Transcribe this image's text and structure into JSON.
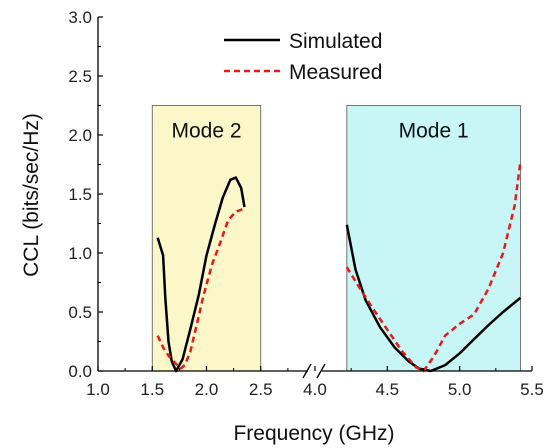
{
  "chart_data": {
    "type": "line",
    "xlabel": "Frequency (GHz)",
    "ylabel": "CCL (bits/sec/Hz)",
    "ylim": [
      0,
      3.0
    ],
    "yticks": [
      "0.0",
      "0.5",
      "1.0",
      "1.5",
      "2.0",
      "2.5",
      "3.0"
    ],
    "x_segments": [
      {
        "range": [
          1.0,
          3.0
        ],
        "ticks": [
          "1.0",
          "1.5",
          "2.0",
          "2.5"
        ]
      },
      {
        "range": [
          4.0,
          5.5
        ],
        "ticks": [
          "4.0",
          "4.5",
          "5.0",
          "5.5"
        ]
      }
    ],
    "axis_break": "between 3.0 and 4.0",
    "legend_position": "top-center",
    "regions": [
      {
        "label": "Mode 2",
        "x": [
          1.5,
          2.5
        ],
        "y": [
          0,
          2.25
        ],
        "color": "#fbf7c9"
      },
      {
        "label": "Mode 1",
        "x": [
          4.22,
          5.42
        ],
        "y": [
          0,
          2.25
        ],
        "color": "#c8f5f5"
      }
    ],
    "series": [
      {
        "name": "Simulated",
        "color": "#000000",
        "style": "solid",
        "segments": [
          [
            [
              1.55,
              1.13
            ],
            [
              1.6,
              0.98
            ],
            [
              1.62,
              0.62
            ],
            [
              1.65,
              0.25
            ],
            [
              1.68,
              0.08
            ],
            [
              1.72,
              0.0
            ],
            [
              1.78,
              0.1
            ],
            [
              1.85,
              0.35
            ],
            [
              1.93,
              0.65
            ],
            [
              2.0,
              0.98
            ],
            [
              2.08,
              1.25
            ],
            [
              2.15,
              1.47
            ],
            [
              2.22,
              1.62
            ],
            [
              2.27,
              1.64
            ],
            [
              2.32,
              1.55
            ],
            [
              2.35,
              1.39
            ]
          ],
          [
            [
              4.22,
              1.24
            ],
            [
              4.28,
              0.86
            ],
            [
              4.35,
              0.6
            ],
            [
              4.45,
              0.37
            ],
            [
              4.55,
              0.2
            ],
            [
              4.65,
              0.08
            ],
            [
              4.72,
              0.02
            ],
            [
              4.8,
              0.0
            ],
            [
              4.9,
              0.05
            ],
            [
              5.0,
              0.15
            ],
            [
              5.1,
              0.27
            ],
            [
              5.2,
              0.39
            ],
            [
              5.3,
              0.5
            ],
            [
              5.42,
              0.62
            ]
          ]
        ]
      },
      {
        "name": "Measured",
        "color": "#e8191b",
        "style": "dashed",
        "segments": [
          [
            [
              1.55,
              0.3
            ],
            [
              1.6,
              0.2
            ],
            [
              1.65,
              0.13
            ],
            [
              1.7,
              0.08
            ],
            [
              1.76,
              0.02
            ],
            [
              1.8,
              0.05
            ],
            [
              1.85,
              0.16
            ],
            [
              1.9,
              0.35
            ],
            [
              1.97,
              0.63
            ],
            [
              2.05,
              0.9
            ],
            [
              2.12,
              1.07
            ],
            [
              2.2,
              1.28
            ],
            [
              2.27,
              1.35
            ],
            [
              2.33,
              1.37
            ]
          ],
          [
            [
              4.22,
              0.88
            ],
            [
              4.3,
              0.72
            ],
            [
              4.4,
              0.53
            ],
            [
              4.5,
              0.35
            ],
            [
              4.6,
              0.17
            ],
            [
              4.7,
              0.03
            ],
            [
              4.75,
              0.0
            ],
            [
              4.82,
              0.12
            ],
            [
              4.9,
              0.3
            ],
            [
              5.0,
              0.4
            ],
            [
              5.1,
              0.48
            ],
            [
              5.2,
              0.7
            ],
            [
              5.3,
              1.0
            ],
            [
              5.38,
              1.4
            ],
            [
              5.42,
              1.77
            ]
          ]
        ]
      }
    ]
  }
}
